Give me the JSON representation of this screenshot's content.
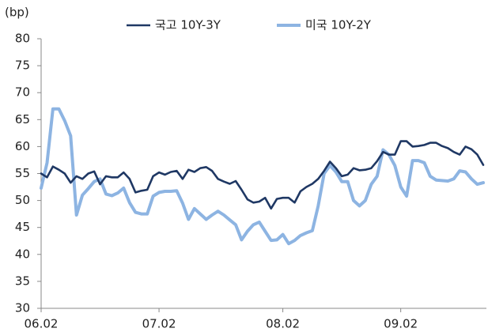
{
  "chart_data": {
    "type": "line",
    "y_label": "(bp)",
    "categories": [
      "06.02",
      null,
      null,
      null,
      null,
      null,
      null,
      null,
      null,
      null,
      null,
      null,
      null,
      null,
      null,
      null,
      null,
      null,
      null,
      null,
      "07.02",
      null,
      null,
      null,
      null,
      null,
      null,
      null,
      null,
      null,
      null,
      null,
      null,
      null,
      null,
      null,
      null,
      null,
      null,
      null,
      null,
      "08.02",
      null,
      null,
      null,
      null,
      null,
      null,
      null,
      null,
      null,
      null,
      null,
      null,
      null,
      null,
      null,
      null,
      null,
      null,
      null,
      "09.02",
      null,
      null,
      null,
      null,
      null,
      null,
      null,
      null,
      null,
      null,
      null,
      null,
      null,
      null
    ],
    "series": [
      {
        "name": "국고 10Y-3Y",
        "color": "#1f3864",
        "values": [
          55,
          54.3,
          56.3,
          55.7,
          55,
          53.3,
          54.5,
          54,
          55,
          55.4,
          53,
          54.5,
          54.3,
          54.3,
          55.2,
          54,
          51.5,
          51.8,
          52,
          54.5,
          55.2,
          54.8,
          55.3,
          55.5,
          54,
          55.7,
          55.3,
          56,
          56.2,
          55.5,
          54,
          53.5,
          53.1,
          53.6,
          52,
          50.2,
          49.6,
          49.8,
          50.5,
          48.5,
          50.3,
          50.5,
          50.5,
          49.6,
          51.7,
          52.5,
          53.1,
          54,
          55.5,
          57.2,
          56,
          54.5,
          54.8,
          56,
          55.6,
          55.7,
          56,
          57.3,
          59,
          58.5,
          58.5,
          61,
          61,
          60,
          60.1,
          60.3,
          60.7,
          60.7,
          60.1,
          59.7,
          59,
          58.5,
          60,
          59.5,
          58.5,
          56.6
        ]
      },
      {
        "name": "미국 10Y-2Y",
        "color": "#8db4e2",
        "values": [
          52.3,
          57,
          67,
          67,
          64.8,
          62,
          47.3,
          51,
          52.2,
          53.5,
          54,
          51.2,
          50.9,
          51.4,
          52.3,
          49.6,
          47.8,
          47.5,
          47.5,
          50.8,
          51.5,
          51.7,
          51.7,
          51.8,
          49.5,
          46.5,
          48.5,
          47.5,
          46.5,
          47.3,
          48,
          47.3,
          46.4,
          45.5,
          42.7,
          44.3,
          45.5,
          46,
          44.3,
          42.6,
          42.7,
          43.7,
          42,
          42.6,
          43.5,
          44,
          44.4,
          49,
          55,
          56.5,
          55.3,
          53.5,
          53.5,
          50,
          49,
          50,
          53,
          54.5,
          59.4,
          58.5,
          56.5,
          52.5,
          50.8,
          57.4,
          57.4,
          57,
          54.5,
          53.8,
          53.7,
          53.6,
          54,
          55.5,
          55.3,
          54,
          53,
          53.3
        ]
      }
    ],
    "ylim": [
      30,
      80
    ],
    "yticks": [
      30,
      35,
      40,
      45,
      50,
      55,
      60,
      65,
      70,
      75,
      80
    ],
    "grid": false,
    "legend": "top"
  }
}
